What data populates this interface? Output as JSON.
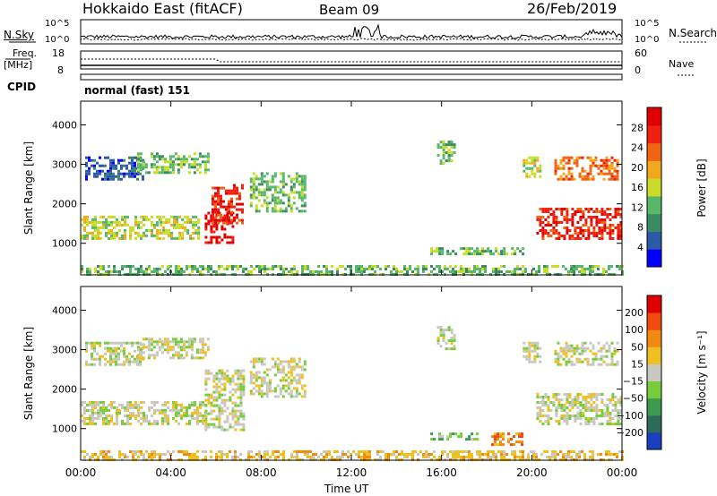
{
  "header": {
    "station": "Hokkaido East (fitACF)",
    "beam": "Beam 09",
    "date": "26/Feb/2019"
  },
  "top_panel": {
    "left_label": "N.Sky",
    "right_label": "N.Search",
    "ticks": [
      "10^5",
      "10^0"
    ]
  },
  "freq_panel": {
    "left_label_1": "Freq.",
    "left_label_2": "[MHz]",
    "left_ticks": [
      "18",
      "8"
    ],
    "right_label": "Nave",
    "right_ticks": [
      "60",
      "0"
    ]
  },
  "cpid": {
    "label": "CPID",
    "mode": "normal (fast) 151"
  },
  "colors": {
    "power": [
      "#0000ff",
      "#2d5aa8",
      "#3a8a64",
      "#58b86a",
      "#c8dc28",
      "#f2a81e",
      "#f06414",
      "#f02010",
      "#e00000"
    ],
    "velocity": [
      "#1a3fc0",
      "#2e6a5a",
      "#3a9a50",
      "#76cc3a",
      "#c8c8c0",
      "#f0c020",
      "#f08a10",
      "#f04a10",
      "#e00000"
    ]
  },
  "chart_data": [
    {
      "type": "heatmap",
      "quantity": "Power",
      "xlabel": "",
      "ylabel": "Slant Range [km]",
      "x_range_hours": [
        0,
        24
      ],
      "ylim": [
        200,
        4600
      ],
      "yticks": [
        "1000",
        "2000",
        "3000",
        "4000"
      ],
      "colorbar": {
        "label": "Power [dB]",
        "ticks": [
          "4",
          "8",
          "12",
          "16",
          "20",
          "24",
          "28"
        ],
        "range": [
          0,
          32
        ]
      },
      "regions": [
        {
          "t0": 0.0,
          "t1": 3.5,
          "r0": 1150,
          "r1": 1700,
          "level": 4
        },
        {
          "t0": 3.5,
          "t1": 5.2,
          "r0": 1150,
          "r1": 1700,
          "level": 4
        },
        {
          "t0": 5.5,
          "t1": 6.7,
          "r0": 1000,
          "r1": 1800,
          "level": 8
        },
        {
          "t0": 5.8,
          "t1": 7.2,
          "r0": 1500,
          "r1": 2500,
          "level": 7
        },
        {
          "t0": 0.2,
          "t1": 2.8,
          "r0": 2600,
          "r1": 3200,
          "level": 1
        },
        {
          "t0": 2.5,
          "t1": 5.7,
          "r0": 2800,
          "r1": 3300,
          "level": 3
        },
        {
          "t0": 7.5,
          "t1": 10.0,
          "r0": 1800,
          "r1": 2800,
          "level": 3
        },
        {
          "t0": 15.8,
          "t1": 16.6,
          "r0": 3000,
          "r1": 3600,
          "level": 3
        },
        {
          "t0": 15.5,
          "t1": 19.6,
          "r0": 700,
          "r1": 900,
          "level": 3
        },
        {
          "t0": 19.6,
          "t1": 20.4,
          "r0": 2700,
          "r1": 3200,
          "level": 4
        },
        {
          "t0": 20.2,
          "t1": 24.0,
          "r0": 1100,
          "r1": 1900,
          "level": 7
        },
        {
          "t0": 21.0,
          "t1": 23.8,
          "r0": 2600,
          "r1": 3200,
          "level": 6
        },
        {
          "t0": 0.0,
          "t1": 24.0,
          "r0": 200,
          "r1": 450,
          "level": 3
        }
      ]
    },
    {
      "type": "heatmap",
      "quantity": "Velocity",
      "xlabel": "Time UT",
      "ylabel": "Slant Range [km]",
      "x_range_hours": [
        0,
        24
      ],
      "ylim": [
        200,
        4600
      ],
      "xticks": [
        "00:00",
        "04:00",
        "08:00",
        "12:00",
        "16:00",
        "20:00",
        "00:00"
      ],
      "yticks": [
        "1000",
        "2000",
        "3000",
        "4000"
      ],
      "colorbar": {
        "label": "Velocity [m s⁻¹]",
        "ticks": [
          "200",
          "100",
          "50",
          "15",
          "−15",
          "−50",
          "−100",
          "−200"
        ],
        "range": [
          -250,
          250
        ]
      },
      "regions": [
        {
          "t0": 0.0,
          "t1": 5.5,
          "r0": 1150,
          "r1": 1700,
          "level": 4
        },
        {
          "t0": 5.5,
          "t1": 7.2,
          "r0": 1000,
          "r1": 2500,
          "level": 4
        },
        {
          "t0": 0.2,
          "t1": 2.8,
          "r0": 2600,
          "r1": 3200,
          "level": 4
        },
        {
          "t0": 2.5,
          "t1": 5.7,
          "r0": 2800,
          "r1": 3300,
          "level": 4
        },
        {
          "t0": 7.5,
          "t1": 10.0,
          "r0": 1800,
          "r1": 2800,
          "level": 4
        },
        {
          "t0": 15.8,
          "t1": 16.6,
          "r0": 3000,
          "r1": 3600,
          "level": 4
        },
        {
          "t0": 15.5,
          "t1": 17.8,
          "r0": 700,
          "r1": 900,
          "level": 3
        },
        {
          "t0": 18.2,
          "t1": 19.6,
          "r0": 600,
          "r1": 900,
          "level": 6
        },
        {
          "t0": 19.6,
          "t1": 20.4,
          "r0": 2700,
          "r1": 3200,
          "level": 4
        },
        {
          "t0": 20.2,
          "t1": 24.0,
          "r0": 1100,
          "r1": 1900,
          "level": 4
        },
        {
          "t0": 21.0,
          "t1": 23.8,
          "r0": 2600,
          "r1": 3200,
          "level": 4
        },
        {
          "t0": 0.0,
          "t1": 24.0,
          "r0": 200,
          "r1": 450,
          "level": 5
        }
      ]
    }
  ]
}
